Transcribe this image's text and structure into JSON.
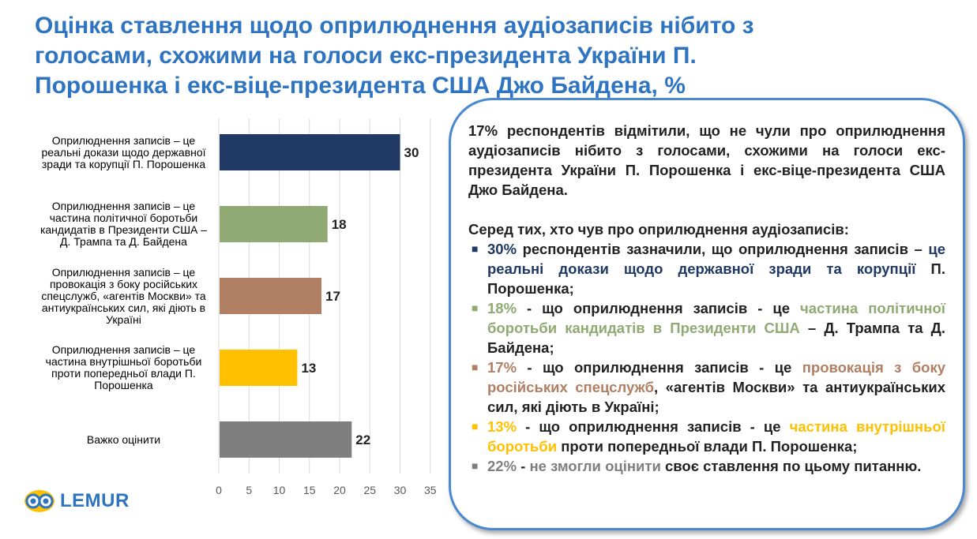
{
  "title": "Оцінка ставлення щодо оприлюднення аудіозаписів нібито з голосами, схожими на голоси екс-президента України П. Порошенка і екс-віце-президента США Джо Байдена, %",
  "chart_data": {
    "type": "bar",
    "orientation": "horizontal",
    "categories": [
      "Оприлюднення записів – це реальні докази щодо державної зради та корупції П. Порошенка",
      "Оприлюднення записів – це частина політичної боротьби кандидатів в Президенти США – Д. Трампа та Д. Байдена",
      "Оприлюднення записів – це провокація з боку російських спецслужб, «агентів Москви» та антиукраїнських сил, які діють в Україні",
      "Оприлюднення записів – це частина внутрішньої боротьби проти попередньої влади П. Порошенка",
      "Важко оцінити"
    ],
    "values": [
      30,
      18,
      17,
      13,
      22
    ],
    "value_labels": [
      "30",
      "18",
      "17",
      "13",
      "22"
    ],
    "colors": [
      "#1f3864",
      "#8faa73",
      "#b07f64",
      "#ffc000",
      "#7f7f7f"
    ],
    "xlim": [
      0,
      35
    ],
    "xticks": [
      "0",
      "5",
      "10",
      "15",
      "20",
      "25",
      "30",
      "35"
    ],
    "grid": true
  },
  "summary": {
    "intro": "17% респондентів відмітили, що не чули про оприлюднення аудіозаписів нібито з голосами, схожими на голоси екс-президента України П. Порошенка і екс-віце-президента США Джо Байдена.",
    "heading": "Серед тих, хто чув про оприлюднення аудіозаписів:",
    "items": [
      {
        "pct": "30%",
        "text1": "респондентів зазначили, що оприлюднення записів – ",
        "highlight": "це реальні докази щодо державної зради та корупції",
        "text2": " П. Порошенка;",
        "color": "#1f3864"
      },
      {
        "pct": "18%",
        "text1": " - що оприлюднення записів - це ",
        "highlight": "частина політичної боротьби кандидатів в Президенти США",
        "text2": " – Д. Трампа та Д. Байдена;",
        "color": "#8faa73"
      },
      {
        "pct": "17%",
        "text1": " - що оприлюднення записів - це ",
        "highlight": "провокація з боку російських спецслужб",
        "text2": ", «агентів Москви» та антиукраїнських сил, які діють в Україні;",
        "color": "#b07f64"
      },
      {
        "pct": "13%",
        "text1": " - що оприлюднення записів - це ",
        "highlight": "частина внутрішньої боротьби",
        "text2": " проти попередньої влади П. Порошенка;",
        "color": "#ffc000"
      },
      {
        "pct": "22%",
        "text1": " - ",
        "highlight": "не змогли оцінити",
        "text2": " своє ставлення по цьому питанню.",
        "color": "#7f7f7f"
      }
    ]
  },
  "logo": {
    "brand": "LEMUR",
    "icon": "lemur-eyes-icon"
  }
}
